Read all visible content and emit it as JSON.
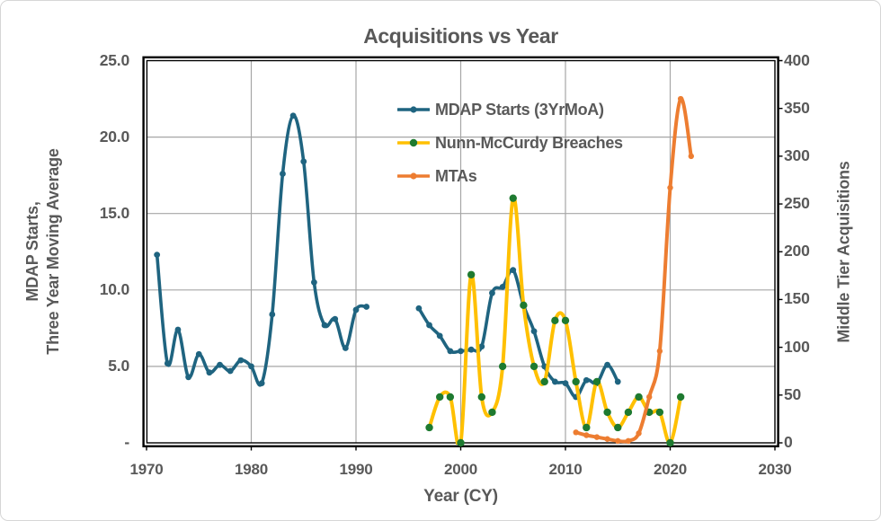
{
  "title": "Acquisitions vs Year",
  "axes": {
    "x": {
      "title": "Year (CY)",
      "min": 1970,
      "max": 2030,
      "tick_values": [
        1970,
        1980,
        1990,
        2000,
        2010,
        2020,
        2030
      ],
      "tick_labels": [
        "1970",
        "1980",
        "1990",
        "2000",
        "2010",
        "2020",
        "2030"
      ]
    },
    "y_left": {
      "title_line1": "MDAP Starts,",
      "title_line2": "Three Year Moving Average",
      "min": 0,
      "max": 25,
      "tick_values": [
        25,
        20,
        15,
        10,
        5,
        0
      ],
      "tick_labels": [
        "25.0",
        "20.0",
        "15.0",
        "10.0",
        "5.0",
        "-"
      ]
    },
    "y_right": {
      "title": "Middle Tier Acquisitions",
      "min": 0,
      "max": 400,
      "tick_values": [
        400,
        350,
        300,
        250,
        200,
        150,
        100,
        50,
        0
      ],
      "tick_labels": [
        "400",
        "350",
        "300",
        "250",
        "200",
        "150",
        "100",
        "50",
        "0"
      ]
    }
  },
  "colors": {
    "text": "#595959",
    "grid": "#a6a6a6",
    "plot_border": "#000000",
    "background": "#ffffff",
    "mdap_blue": "#1f6480",
    "breach_yellow": "#ffc000",
    "breach_marker_green": "#1e7a30",
    "mta_orange": "#ed7d31"
  },
  "chart_data": {
    "type": "line",
    "title": "Acquisitions vs Year",
    "xlabel": "Year (CY)",
    "ylabel_left": "MDAP Starts, Three Year Moving Average",
    "ylabel_right": "Middle Tier Acquisitions",
    "x_range": [
      1970,
      2030
    ],
    "y_left_range": [
      0,
      25
    ],
    "y_right_range": [
      0,
      400
    ],
    "grid": true,
    "smooth_lines": true,
    "legend_position": "upper-middle-right-inside",
    "series": [
      {
        "name": "MDAP Starts (3YrMoA)",
        "axis": "left",
        "color": "#1f6480",
        "marker_color": "#1f6480",
        "line_width": 3.6,
        "marker_size": 3.4,
        "segments": [
          {
            "x": [
              1971,
              1972,
              1973,
              1974,
              1975,
              1976,
              1977,
              1978,
              1979,
              1980,
              1981,
              1982,
              1983,
              1984,
              1985,
              1986,
              1987,
              1988,
              1989,
              1990,
              1991
            ],
            "y": [
              12.3,
              5.2,
              7.4,
              4.3,
              5.8,
              4.6,
              5.1,
              4.7,
              5.4,
              5.0,
              3.9,
              8.4,
              17.6,
              21.4,
              18.4,
              10.5,
              7.7,
              8.1,
              6.2,
              8.7,
              8.9
            ]
          },
          {
            "x": [
              1996,
              1997,
              1998,
              1999,
              2000,
              2001,
              2002,
              2003,
              2004,
              2005,
              2006,
              2007,
              2008,
              2009,
              2010,
              2011,
              2012,
              2013,
              2014,
              2015
            ],
            "y": [
              8.8,
              7.7,
              7.0,
              6.0,
              6.0,
              6.1,
              6.3,
              9.8,
              10.2,
              11.3,
              9.0,
              7.3,
              5.0,
              4.0,
              3.9,
              3.0,
              4.1,
              3.9,
              5.1,
              4.0
            ]
          }
        ]
      },
      {
        "name": "Nunn-McCurdy Breaches",
        "axis": "left",
        "color": "#ffc000",
        "marker_color": "#1e7a30",
        "line_width": 4,
        "marker_size": 4.2,
        "segments": [
          {
            "x": [
              1997,
              1998,
              1999,
              2000,
              2001,
              2002,
              2003,
              2004,
              2005,
              2006,
              2007,
              2008,
              2009,
              2010,
              2011,
              2012,
              2013,
              2014,
              2015,
              2016,
              2017,
              2018,
              2019,
              2020,
              2021
            ],
            "y": [
              1,
              3,
              3,
              0,
              11,
              3,
              2,
              5,
              16,
              9,
              5,
              4,
              8,
              8,
              4,
              1,
              4,
              2,
              1,
              2,
              3,
              2,
              2,
              0,
              3
            ]
          }
        ]
      },
      {
        "name": "MTAs",
        "axis": "right",
        "color": "#ed7d31",
        "marker_color": "#ed7d31",
        "line_width": 4,
        "marker_size": 3.2,
        "segments": [
          {
            "x": [
              2011,
              2012,
              2013,
              2014,
              2015,
              2016,
              2017,
              2018,
              2019,
              2020,
              2021,
              2022
            ],
            "y": [
              11,
              8,
              6,
              4,
              2,
              2,
              10,
              48,
              96,
              267,
              360,
              300
            ]
          }
        ]
      }
    ]
  }
}
